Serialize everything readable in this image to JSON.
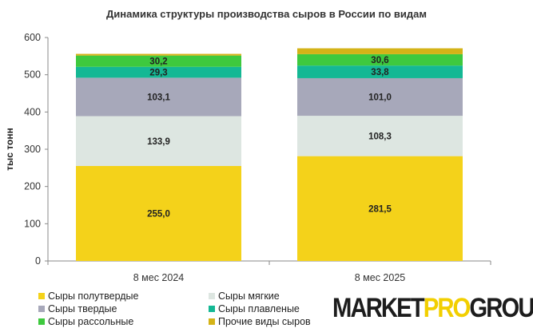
{
  "chart_data": {
    "type": "bar",
    "stacked": true,
    "title": "Динамика структуры производства сыров в России по видам",
    "ylabel": "тыс тонн",
    "xlabel": "",
    "ylim": [
      0,
      600
    ],
    "yticks": [
      0,
      100,
      200,
      300,
      400,
      500,
      600
    ],
    "categories": [
      "8 мес 2024",
      "8 мес 2025"
    ],
    "series": [
      {
        "name": "Сыры полутвердые",
        "color": "#f4d21a",
        "values": [
          255.0,
          281.5
        ],
        "labels": [
          "255,0",
          "281,5"
        ]
      },
      {
        "name": "Сыры мягкие",
        "color": "#dde6e1",
        "values": [
          133.9,
          108.3
        ],
        "labels": [
          "133,9",
          "108,3"
        ]
      },
      {
        "name": "Сыры твердые",
        "color": "#a7a8ba",
        "values": [
          103.1,
          101.0
        ],
        "labels": [
          "103,1",
          "101,0"
        ]
      },
      {
        "name": "Сыры плавленые",
        "color": "#14b894",
        "values": [
          29.3,
          33.8
        ],
        "labels": [
          "29,3",
          "33,8"
        ]
      },
      {
        "name": "Сыры рассольные",
        "color": "#3ec93e",
        "values": [
          30.2,
          30.6
        ],
        "labels": [
          "30,2",
          "30,6"
        ]
      },
      {
        "name": "Прочие виды сыров",
        "color": "#d4b317",
        "values": [
          4.5,
          15.8
        ],
        "labels": [
          "",
          ""
        ]
      }
    ],
    "grid": false,
    "legend_position": "bottom-left"
  },
  "logo": {
    "part1": "MARKET",
    "part2": "PRO",
    "part3": "GROUP"
  }
}
